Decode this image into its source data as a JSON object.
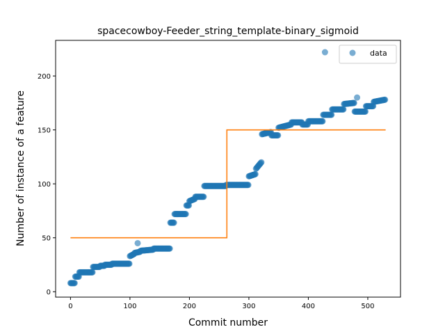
{
  "chart_data": {
    "type": "scatter",
    "title": "spacecowboy-Feeder_string_template-binary_sigmoid",
    "xlabel": "Commit number",
    "ylabel": "Number of instance of a feature",
    "xlim": [
      -25,
      555
    ],
    "ylim": [
      -5,
      233
    ],
    "xticks": [
      0,
      100,
      200,
      300,
      400,
      500
    ],
    "yticks": [
      0,
      50,
      100,
      150,
      200
    ],
    "grid": false,
    "legend": {
      "placement": "top-right",
      "entries": [
        "data"
      ]
    },
    "colors": {
      "data": "#1f77b4",
      "fit": "#ff7f0e"
    },
    "series": [
      {
        "name": "data",
        "kind": "scatter",
        "segments": [
          [
            0,
            8,
            8,
            8
          ],
          [
            8,
            15,
            14,
            14
          ],
          [
            15,
            38,
            18,
            18
          ],
          [
            38,
            50,
            23,
            23
          ],
          [
            50,
            58,
            24,
            24
          ],
          [
            58,
            70,
            25,
            25
          ],
          [
            70,
            100,
            26,
            26
          ],
          [
            100,
            108,
            33,
            35
          ],
          [
            108,
            118,
            36,
            37
          ],
          [
            118,
            140,
            38,
            39
          ],
          [
            140,
            168,
            40,
            40
          ],
          [
            168,
            175,
            64,
            64
          ],
          [
            175,
            195,
            72,
            72
          ],
          [
            195,
            200,
            80,
            80
          ],
          [
            200,
            210,
            84,
            86
          ],
          [
            210,
            225,
            88,
            88
          ],
          [
            225,
            262,
            98,
            98
          ],
          [
            262,
            300,
            99,
            99
          ],
          [
            300,
            312,
            107,
            109
          ],
          [
            312,
            322,
            114,
            120
          ],
          [
            322,
            338,
            146,
            148
          ],
          [
            338,
            350,
            145,
            145
          ],
          [
            350,
            372,
            152,
            155
          ],
          [
            372,
            390,
            157,
            157
          ],
          [
            390,
            400,
            155,
            155
          ],
          [
            400,
            425,
            158,
            158
          ],
          [
            425,
            440,
            164,
            164
          ],
          [
            440,
            460,
            169,
            169
          ],
          [
            460,
            478,
            174,
            175
          ],
          [
            478,
            497,
            167,
            167
          ],
          [
            497,
            510,
            172,
            172
          ],
          [
            510,
            530,
            176,
            178
          ]
        ],
        "extra_points": [
          [
            113,
            45
          ],
          [
            428,
            222
          ],
          [
            482,
            180
          ]
        ]
      },
      {
        "name": "",
        "kind": "step",
        "points": [
          [
            0,
            50
          ],
          [
            263,
            50
          ],
          [
            263,
            150
          ],
          [
            530,
            150
          ]
        ]
      }
    ]
  }
}
